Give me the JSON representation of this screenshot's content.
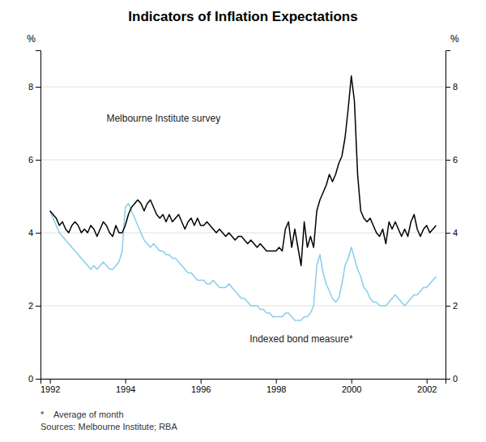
{
  "chart_data": {
    "type": "line",
    "title": "Indicators of Inflation Expectations",
    "ylabel": "%",
    "y2label": "%",
    "xlim": [
      1991.75,
      2002.5
    ],
    "xticks": [
      1992,
      1994,
      1996,
      1998,
      2000,
      2002
    ],
    "ylim": [
      0,
      9
    ],
    "yticks": [
      0,
      2,
      4,
      6,
      8
    ],
    "y2lim": [
      0,
      9
    ],
    "y2ticks": [
      0,
      2,
      4,
      6,
      8
    ],
    "grid": true,
    "x": [
      1992.0,
      1992.083,
      1992.167,
      1992.25,
      1992.333,
      1992.417,
      1992.5,
      1992.583,
      1992.667,
      1992.75,
      1992.833,
      1992.917,
      1993.0,
      1993.083,
      1993.167,
      1993.25,
      1993.333,
      1993.417,
      1993.5,
      1993.583,
      1993.667,
      1993.75,
      1993.833,
      1993.917,
      1994.0,
      1994.083,
      1994.167,
      1994.25,
      1994.333,
      1994.417,
      1994.5,
      1994.583,
      1994.667,
      1994.75,
      1994.833,
      1994.917,
      1995.0,
      1995.083,
      1995.167,
      1995.25,
      1995.333,
      1995.417,
      1995.5,
      1995.583,
      1995.667,
      1995.75,
      1995.833,
      1995.917,
      1996.0,
      1996.083,
      1996.167,
      1996.25,
      1996.333,
      1996.417,
      1996.5,
      1996.583,
      1996.667,
      1996.75,
      1996.833,
      1996.917,
      1997.0,
      1997.083,
      1997.167,
      1997.25,
      1997.333,
      1997.417,
      1997.5,
      1997.583,
      1997.667,
      1997.75,
      1997.833,
      1997.917,
      1998.0,
      1998.083,
      1998.167,
      1998.25,
      1998.333,
      1998.417,
      1998.5,
      1998.583,
      1998.667,
      1998.75,
      1998.833,
      1998.917,
      1999.0,
      1999.083,
      1999.167,
      1999.25,
      1999.333,
      1999.417,
      1999.5,
      1999.583,
      1999.667,
      1999.75,
      1999.833,
      1999.917,
      2000.0,
      2000.083,
      2000.167,
      2000.25,
      2000.333,
      2000.417,
      2000.5,
      2000.583,
      2000.667,
      2000.75,
      2000.833,
      2000.917,
      2001.0,
      2001.083,
      2001.167,
      2001.25,
      2001.333,
      2001.417,
      2001.5,
      2001.583,
      2001.667,
      2001.75,
      2001.833,
      2001.917,
      2002.0,
      2002.083,
      2002.167,
      2002.25
    ],
    "series": [
      {
        "color": "#87ceeb",
        "values": [
          4.6,
          4.4,
          4.2,
          4.0,
          3.9,
          3.8,
          3.7,
          3.6,
          3.5,
          3.4,
          3.3,
          3.2,
          3.1,
          3.0,
          3.1,
          3.0,
          3.1,
          3.2,
          3.1,
          3.0,
          3.0,
          3.1,
          3.2,
          3.5,
          4.7,
          4.8,
          4.6,
          4.4,
          4.2,
          4.0,
          3.8,
          3.7,
          3.6,
          3.7,
          3.6,
          3.5,
          3.5,
          3.4,
          3.4,
          3.3,
          3.3,
          3.2,
          3.1,
          3.0,
          2.9,
          2.9,
          2.8,
          2.7,
          2.7,
          2.7,
          2.6,
          2.6,
          2.7,
          2.6,
          2.5,
          2.5,
          2.5,
          2.6,
          2.5,
          2.4,
          2.3,
          2.2,
          2.2,
          2.1,
          2.0,
          2.0,
          2.0,
          1.9,
          1.9,
          1.8,
          1.8,
          1.7,
          1.7,
          1.7,
          1.7,
          1.8,
          1.8,
          1.7,
          1.6,
          1.6,
          1.6,
          1.7,
          1.7,
          1.8,
          2.0,
          3.1,
          3.4,
          2.9,
          2.6,
          2.4,
          2.2,
          2.1,
          2.2,
          2.6,
          3.1,
          3.3,
          3.6,
          3.3,
          3.0,
          2.8,
          2.5,
          2.4,
          2.2,
          2.1,
          2.1,
          2.0,
          2.0,
          2.0,
          2.1,
          2.2,
          2.3,
          2.2,
          2.1,
          2.0,
          2.1,
          2.2,
          2.3,
          2.3,
          2.4,
          2.5,
          2.5,
          2.6,
          2.7,
          2.8
        ]
      },
      {
        "color": "#000000",
        "values": [
          4.6,
          4.5,
          4.4,
          4.2,
          4.3,
          4.1,
          4.0,
          4.2,
          4.3,
          4.2,
          4.0,
          4.1,
          4.0,
          4.2,
          4.1,
          3.9,
          4.1,
          4.3,
          4.2,
          4.0,
          3.9,
          4.2,
          4.0,
          4.0,
          4.2,
          4.5,
          4.7,
          4.8,
          4.9,
          4.8,
          4.6,
          4.8,
          4.9,
          4.7,
          4.5,
          4.4,
          4.5,
          4.3,
          4.5,
          4.3,
          4.4,
          4.5,
          4.3,
          4.1,
          4.3,
          4.4,
          4.2,
          4.4,
          4.2,
          4.2,
          4.3,
          4.2,
          4.1,
          4.0,
          4.1,
          4.0,
          3.9,
          4.0,
          3.9,
          3.8,
          3.9,
          3.9,
          3.8,
          3.7,
          3.8,
          3.7,
          3.6,
          3.7,
          3.6,
          3.5,
          3.5,
          3.5,
          3.5,
          3.6,
          3.5,
          4.1,
          4.3,
          3.6,
          4.1,
          3.6,
          3.1,
          4.3,
          3.6,
          3.9,
          3.6,
          4.6,
          4.9,
          5.1,
          5.3,
          5.6,
          5.4,
          5.6,
          5.9,
          6.1,
          6.6,
          7.4,
          8.3,
          7.6,
          5.6,
          4.6,
          4.4,
          4.3,
          4.4,
          4.2,
          4.0,
          3.9,
          4.1,
          3.7,
          4.3,
          4.1,
          4.3,
          4.1,
          3.9,
          4.1,
          3.9,
          4.3,
          4.5,
          4.1,
          3.9,
          4.1,
          4.2,
          4.0,
          4.1,
          4.2
        ]
      }
    ],
    "annotations": [
      {
        "text": "Melbourne Institute survey",
        "x": 1993.5,
        "y": 7.0
      },
      {
        "text": "Indexed bond measure*",
        "x": 1997.3,
        "y": 1.25
      }
    ],
    "footnotes": [
      "*    Average of month",
      "Sources: Melbourne Institute; RBA"
    ]
  }
}
